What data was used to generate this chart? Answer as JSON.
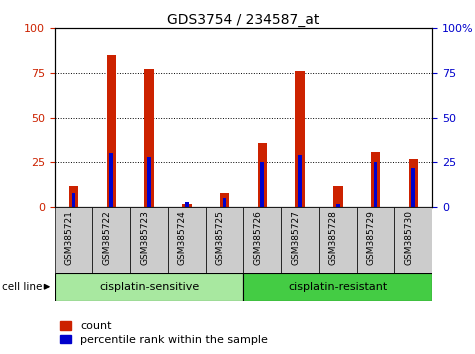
{
  "title": "GDS3754 / 234587_at",
  "samples": [
    "GSM385721",
    "GSM385722",
    "GSM385723",
    "GSM385724",
    "GSM385725",
    "GSM385726",
    "GSM385727",
    "GSM385728",
    "GSM385729",
    "GSM385730"
  ],
  "count_values": [
    12,
    85,
    77,
    2,
    8,
    36,
    76,
    12,
    31,
    27
  ],
  "percentile_values": [
    8,
    30,
    28,
    3,
    5,
    25,
    29,
    2,
    25,
    22
  ],
  "groups": [
    {
      "label": "cisplatin-sensitive",
      "start": 0,
      "end": 5,
      "color": "#a8e8a0"
    },
    {
      "label": "cisplatin-resistant",
      "start": 5,
      "end": 10,
      "color": "#44cc44"
    }
  ],
  "group_label_prefix": "cell line",
  "ylim": [
    0,
    100
  ],
  "yticks": [
    0,
    25,
    50,
    75,
    100
  ],
  "red_color": "#cc2200",
  "blue_color": "#0000cc",
  "legend_count": "count",
  "legend_pct": "percentile rank within the sample",
  "bg_color": "#ffffff",
  "grid_color": "#000000",
  "tick_label_color_left": "#cc2200",
  "tick_label_color_right": "#0000cc",
  "title_fontsize": 10,
  "axis_fontsize": 8,
  "legend_fontsize": 8,
  "ticklabel_area_color": "#cccccc"
}
